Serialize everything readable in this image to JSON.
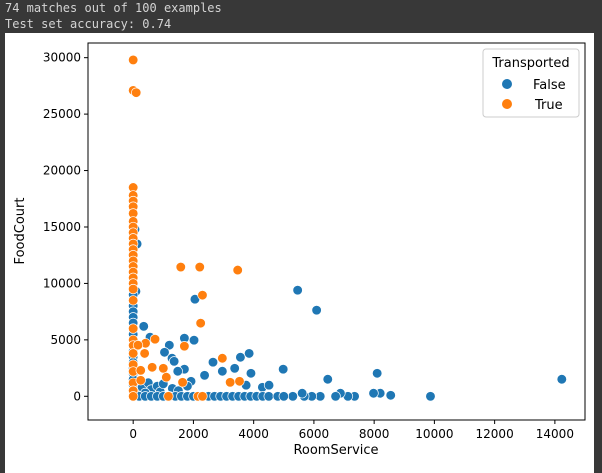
{
  "output": {
    "line1": "74 matches out of 100 examples",
    "line2": "Test set accuracy: 0.74"
  },
  "chart_data": {
    "type": "scatter",
    "title": "",
    "xlabel": "RoomService",
    "ylabel": "FoodCourt",
    "xlim": [
      -1500,
      15000
    ],
    "ylim": [
      -2100,
      31300
    ],
    "xticks": [
      0,
      2000,
      4000,
      6000,
      8000,
      10000,
      12000,
      14000
    ],
    "yticks": [
      0,
      5000,
      10000,
      15000,
      20000,
      25000,
      30000
    ],
    "grid": false,
    "legend": {
      "title": "Transported",
      "placement": "top-right",
      "entries": [
        "False",
        "True"
      ]
    },
    "colors": {
      "False": "#1f77b4",
      "True": "#ff7f0e"
    },
    "series": [
      {
        "name": "False",
        "points": [
          [
            60,
            14800
          ],
          [
            130,
            13500
          ],
          [
            90,
            9300
          ],
          [
            0,
            9000
          ],
          [
            0,
            8000
          ],
          [
            0,
            7500
          ],
          [
            0,
            7000
          ],
          [
            0,
            6500
          ],
          [
            0,
            5500
          ],
          [
            0,
            4000
          ],
          [
            0,
            3500
          ],
          [
            0,
            3000
          ],
          [
            0,
            2500
          ],
          [
            0,
            2000
          ],
          [
            0,
            1500
          ],
          [
            0,
            1000
          ],
          [
            2050,
            8600
          ],
          [
            350,
            6200
          ],
          [
            560,
            5240
          ],
          [
            1700,
            5150
          ],
          [
            2020,
            4970
          ],
          [
            1200,
            4530
          ],
          [
            1040,
            3900
          ],
          [
            1290,
            3370
          ],
          [
            1360,
            3100
          ],
          [
            1700,
            2400
          ],
          [
            1480,
            2220
          ],
          [
            2650,
            3020
          ],
          [
            3560,
            3460
          ],
          [
            3850,
            3800
          ],
          [
            2960,
            2220
          ],
          [
            3370,
            2480
          ],
          [
            3910,
            2040
          ],
          [
            2370,
            1860
          ],
          [
            4980,
            2400
          ],
          [
            5460,
            9400
          ],
          [
            6090,
            7630
          ],
          [
            6460,
            1510
          ],
          [
            4290,
            800
          ],
          [
            4510,
            980
          ],
          [
            3750,
            980
          ],
          [
            1920,
            1330
          ],
          [
            14230,
            1510
          ],
          [
            8100,
            2040
          ],
          [
            9870,
            0
          ],
          [
            8550,
            90
          ],
          [
            8200,
            270
          ],
          [
            7980,
            270
          ],
          [
            7350,
            0
          ],
          [
            7130,
            0
          ],
          [
            6880,
            270
          ],
          [
            6720,
            0
          ],
          [
            6210,
            0
          ],
          [
            5930,
            0
          ],
          [
            5680,
            0
          ],
          [
            5610,
            270
          ],
          [
            5300,
            0
          ],
          [
            100,
            500
          ],
          [
            200,
            1000
          ],
          [
            300,
            800
          ],
          [
            500,
            1200
          ],
          [
            600,
            600
          ],
          [
            400,
            300
          ],
          [
            800,
            900
          ],
          [
            900,
            400
          ],
          [
            1000,
            1100
          ],
          [
            1300,
            700
          ],
          [
            1500,
            500
          ],
          [
            1800,
            900
          ],
          [
            200,
            0
          ],
          [
            400,
            0
          ],
          [
            600,
            0
          ],
          [
            800,
            0
          ],
          [
            1000,
            0
          ],
          [
            1200,
            0
          ],
          [
            1400,
            0
          ],
          [
            1600,
            0
          ],
          [
            1800,
            0
          ],
          [
            2000,
            0
          ],
          [
            2200,
            0
          ],
          [
            2500,
            0
          ],
          [
            2700,
            0
          ],
          [
            2900,
            0
          ],
          [
            3100,
            0
          ],
          [
            3300,
            0
          ],
          [
            3500,
            0
          ],
          [
            3700,
            0
          ],
          [
            3900,
            0
          ],
          [
            4100,
            0
          ],
          [
            4300,
            0
          ],
          [
            4500,
            0
          ],
          [
            4800,
            0
          ],
          [
            5000,
            0
          ]
        ]
      },
      {
        "name": "True",
        "points": [
          [
            0,
            29800
          ],
          [
            0,
            27100
          ],
          [
            100,
            26900
          ],
          [
            0,
            18500
          ],
          [
            0,
            17800
          ],
          [
            0,
            17300
          ],
          [
            0,
            16800
          ],
          [
            0,
            16200
          ],
          [
            0,
            15500
          ],
          [
            0,
            15000
          ],
          [
            0,
            14500
          ],
          [
            0,
            14000
          ],
          [
            0,
            13500
          ],
          [
            0,
            13000
          ],
          [
            0,
            12500
          ],
          [
            0,
            12000
          ],
          [
            0,
            11500
          ],
          [
            0,
            11000
          ],
          [
            0,
            10500
          ],
          [
            0,
            10000
          ],
          [
            0,
            9500
          ],
          [
            0,
            8500
          ],
          [
            0,
            6000
          ],
          [
            0,
            5000
          ],
          [
            0,
            4500
          ],
          [
            0,
            3800
          ],
          [
            0,
            2800
          ],
          [
            0,
            2200
          ],
          [
            0,
            1200
          ],
          [
            0,
            500
          ],
          [
            0,
            0
          ],
          [
            1580,
            11450
          ],
          [
            2210,
            11450
          ],
          [
            3470,
            11180
          ],
          [
            2300,
            8960
          ],
          [
            2240,
            6480
          ],
          [
            1700,
            4440
          ],
          [
            725,
            5060
          ],
          [
            2960,
            3370
          ],
          [
            3220,
            1240
          ],
          [
            3530,
            1330
          ],
          [
            410,
            4700
          ],
          [
            160,
            4530
          ],
          [
            630,
            2570
          ],
          [
            1000,
            2480
          ],
          [
            250,
            2300
          ],
          [
            380,
            3800
          ],
          [
            1100,
            1690
          ],
          [
            250,
            1420
          ],
          [
            1170,
            0
          ],
          [
            2150,
            0
          ],
          [
            2300,
            0
          ],
          [
            1640,
            1240
          ]
        ]
      }
    ]
  }
}
